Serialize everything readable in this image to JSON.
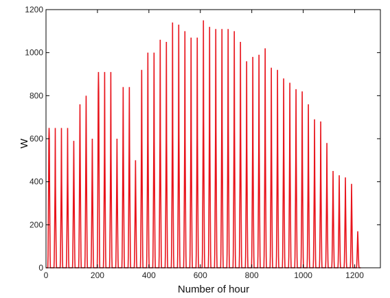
{
  "chart_data": {
    "type": "line",
    "title": "",
    "xlabel": "Number of hour",
    "ylabel": "W",
    "xlim": [
      0,
      1300
    ],
    "ylim": [
      0,
      1200
    ],
    "xticks": [
      0,
      200,
      400,
      600,
      800,
      1000,
      1200
    ],
    "yticks": [
      0,
      200,
      400,
      600,
      800,
      1000,
      1200
    ],
    "grid": false,
    "legend": "none",
    "series": [
      {
        "color": "#e8141c",
        "hours_per_day": 24,
        "day_length_hours": 10,
        "daily_peaks": [
          650,
          650,
          650,
          650,
          590,
          760,
          800,
          600,
          910,
          910,
          910,
          600,
          840,
          840,
          500,
          920,
          1000,
          1000,
          1060,
          1050,
          1140,
          1130,
          1100,
          1070,
          1070,
          1150,
          1120,
          1110,
          1110,
          1110,
          1100,
          1050,
          960,
          980,
          990,
          1020,
          930,
          920,
          880,
          860,
          830,
          820,
          760,
          690,
          680,
          580,
          450,
          430,
          420,
          390,
          170
        ],
        "daily_secondary": [
          600,
          380,
          400,
          410,
          420,
          540,
          560,
          420,
          820,
          530,
          530,
          420,
          560,
          560,
          360,
          590,
          590,
          590,
          600,
          590,
          620,
          620,
          600,
          610,
          600,
          680,
          640,
          640,
          650,
          650,
          640,
          620,
          560,
          560,
          570,
          580,
          560,
          560,
          540,
          530,
          520,
          510,
          470,
          430,
          420,
          380,
          320,
          300,
          290,
          280,
          130
        ]
      }
    ]
  }
}
